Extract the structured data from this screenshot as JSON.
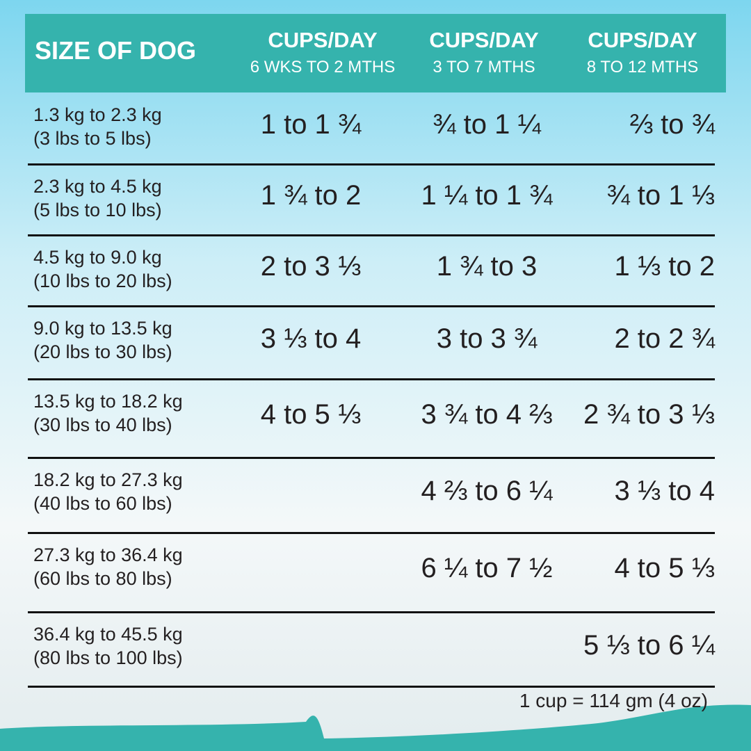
{
  "table": {
    "header": [
      {
        "title": "SIZE OF DOG"
      },
      {
        "title": "CUPS/DAY",
        "subtitle": "6 WKS TO 2 MTHS"
      },
      {
        "title": "CUPS/DAY",
        "subtitle": "3 TO 7 MTHS"
      },
      {
        "title": "CUPS/DAY",
        "subtitle": "8 TO 12 MTHS"
      }
    ],
    "rows": [
      {
        "kg": "1.3 kg to 2.3 kg",
        "lbs": "(3 lbs to 5 lbs)",
        "cups": [
          "1 to 1 ¾",
          "¾ to 1 ¼",
          "⅔ to ¾"
        ]
      },
      {
        "kg": "2.3 kg to 4.5 kg",
        "lbs": "(5 lbs to 10 lbs)",
        "cups": [
          "1 ¾ to 2",
          "1 ¼ to 1 ¾",
          "¾ to 1 ⅓"
        ]
      },
      {
        "kg": "4.5 kg to 9.0 kg",
        "lbs": "(10 lbs to 20 lbs)",
        "cups": [
          "2 to 3 ⅓",
          "1 ¾ to 3",
          "1 ⅓ to 2"
        ]
      },
      {
        "kg": "9.0 kg to 13.5 kg",
        "lbs": "(20 lbs to 30 lbs)",
        "cups": [
          "3 ⅓ to 4",
          "3 to 3 ¾",
          "2 to 2 ¾"
        ]
      },
      {
        "kg": "13.5 kg to 18.2 kg",
        "lbs": "(30 lbs to 40 lbs)",
        "cups": [
          "4 to 5 ⅓",
          "3 ¾ to 4 ⅔",
          "2 ¾ to 3 ⅓"
        ]
      },
      {
        "kg": "18.2 kg to 27.3 kg",
        "lbs": "(40 lbs to 60 lbs)",
        "cups": [
          null,
          "4 ⅔ to 6 ¼",
          "3 ⅓ to 4"
        ]
      },
      {
        "kg": "27.3 kg to 36.4 kg",
        "lbs": "(60 lbs to 80 lbs)",
        "cups": [
          null,
          "6 ¼ to 7 ½",
          "4 to 5 ⅓"
        ]
      },
      {
        "kg": "36.4 kg to 45.5 kg",
        "lbs": "(80 lbs to 100 lbs)",
        "cups": [
          null,
          null,
          "5 ⅓ to 6 ¼"
        ]
      }
    ]
  },
  "footnote": "1 cup = 114 gm (4 oz)"
}
